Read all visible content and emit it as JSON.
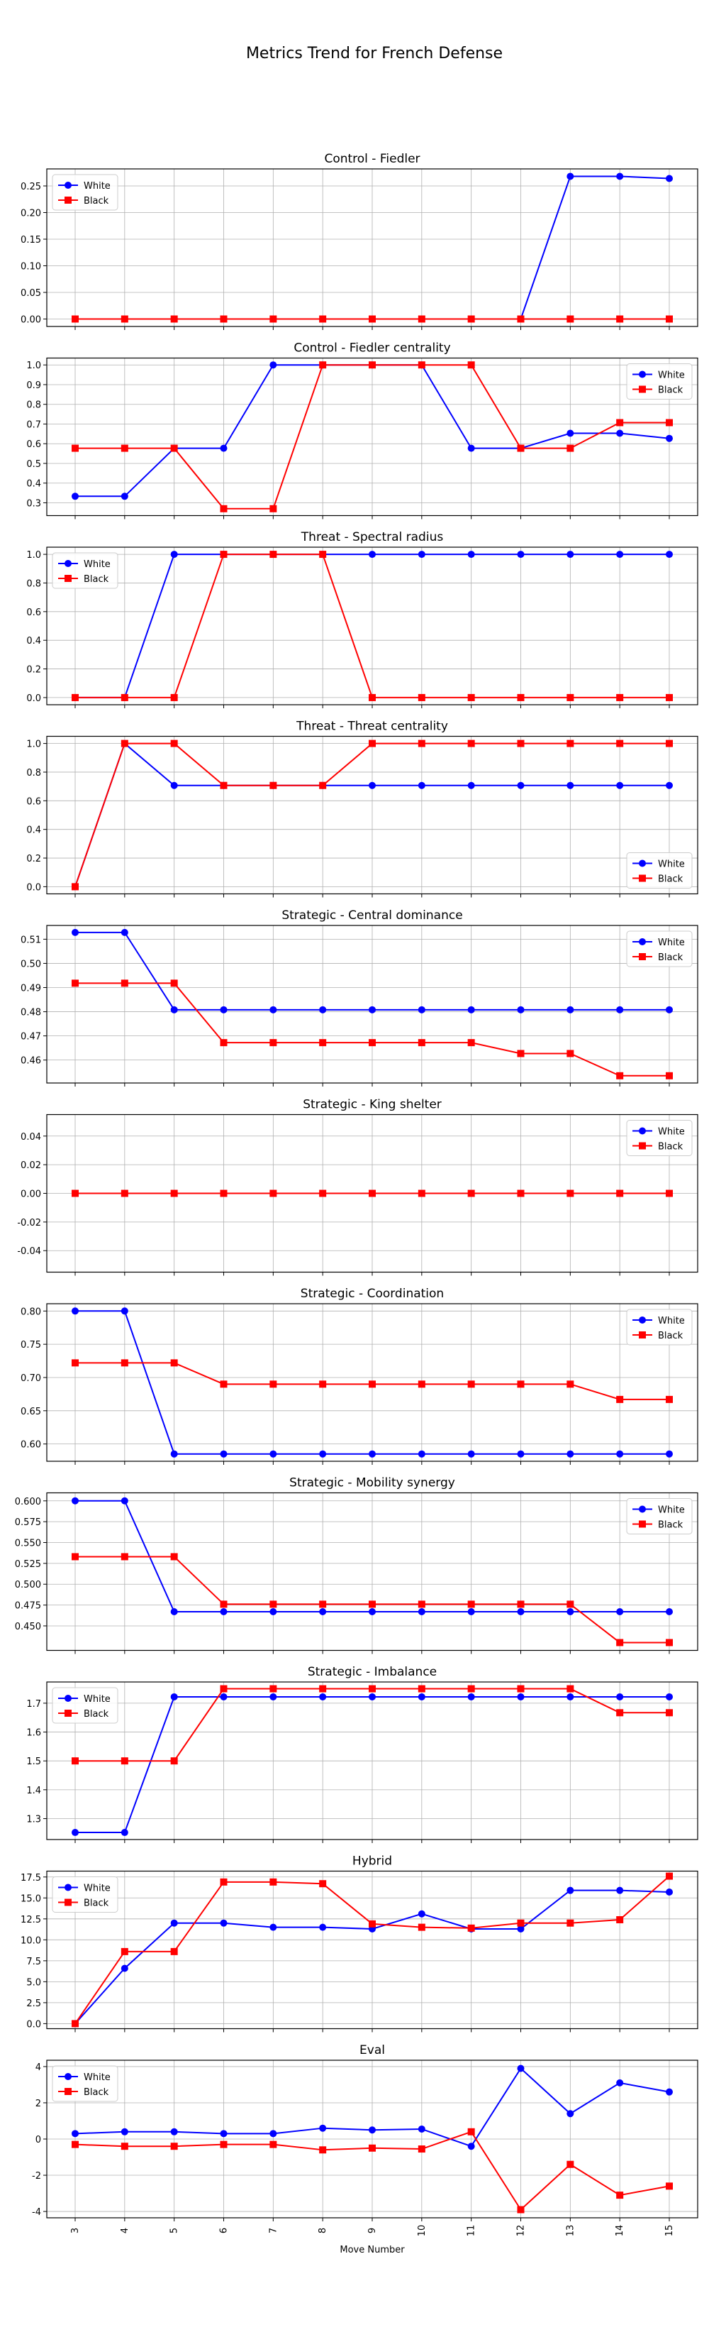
{
  "figure": {
    "title": "Metrics Trend for French Defense",
    "xlabel": "Move Number"
  },
  "colors": {
    "white": "#0000ff",
    "black": "#ff0000",
    "grid": "#b0b0b0"
  },
  "chart_data": [
    {
      "type": "line",
      "title": "Control - Fiedler",
      "x": [
        3,
        4,
        5,
        6,
        7,
        8,
        9,
        10,
        11,
        12,
        13,
        14,
        15
      ],
      "yticks": [
        0.0,
        0.05,
        0.1,
        0.15,
        0.2,
        0.25
      ],
      "tick_decimals": 2,
      "ylim": [
        -0.014,
        0.282
      ],
      "legend": "upper-left",
      "series": [
        {
          "name": "White",
          "marker": "circle",
          "values": [
            0,
            0,
            0,
            0,
            0,
            0,
            0,
            0,
            0,
            0,
            0.268,
            0.268,
            0.264
          ]
        },
        {
          "name": "Black",
          "marker": "square",
          "values": [
            0,
            0,
            0,
            0,
            0,
            0,
            0,
            0,
            0,
            0,
            0,
            0,
            0
          ]
        }
      ]
    },
    {
      "type": "line",
      "title": "Control - Fiedler centrality",
      "x": [
        3,
        4,
        5,
        6,
        7,
        8,
        9,
        10,
        11,
        12,
        13,
        14,
        15
      ],
      "yticks": [
        0.3,
        0.4,
        0.5,
        0.6,
        0.7,
        0.8,
        0.9,
        1.0
      ],
      "tick_decimals": 1,
      "ylim": [
        0.235,
        1.035
      ],
      "legend": "upper-right",
      "series": [
        {
          "name": "White",
          "marker": "circle",
          "values": [
            0.333,
            0.333,
            0.577,
            0.577,
            1.0,
            1.0,
            1.0,
            1.0,
            0.577,
            0.577,
            0.653,
            0.653,
            0.627
          ]
        },
        {
          "name": "Black",
          "marker": "square",
          "values": [
            0.577,
            0.577,
            0.577,
            0.27,
            0.27,
            1.0,
            1.0,
            1.0,
            1.0,
            0.577,
            0.577,
            0.707,
            0.707
          ]
        }
      ]
    },
    {
      "type": "line",
      "title": "Threat - Spectral radius",
      "x": [
        3,
        4,
        5,
        6,
        7,
        8,
        9,
        10,
        11,
        12,
        13,
        14,
        15
      ],
      "yticks": [
        0.0,
        0.2,
        0.4,
        0.6,
        0.8,
        1.0
      ],
      "tick_decimals": 1,
      "ylim": [
        -0.05,
        1.05
      ],
      "legend": "upper-left",
      "series": [
        {
          "name": "White",
          "marker": "circle",
          "values": [
            0,
            0,
            1,
            1,
            1,
            1,
            1,
            1,
            1,
            1,
            1,
            1,
            1
          ]
        },
        {
          "name": "Black",
          "marker": "square",
          "values": [
            0,
            0,
            0,
            1,
            1,
            1,
            0,
            0,
            0,
            0,
            0,
            0,
            0
          ]
        }
      ]
    },
    {
      "type": "line",
      "title": "Threat - Threat centrality",
      "x": [
        3,
        4,
        5,
        6,
        7,
        8,
        9,
        10,
        11,
        12,
        13,
        14,
        15
      ],
      "yticks": [
        0.0,
        0.2,
        0.4,
        0.6,
        0.8,
        1.0
      ],
      "tick_decimals": 1,
      "ylim": [
        -0.05,
        1.05
      ],
      "legend": "lower-right",
      "series": [
        {
          "name": "White",
          "marker": "circle",
          "values": [
            0,
            1.0,
            0.707,
            0.707,
            0.707,
            0.707,
            0.707,
            0.707,
            0.707,
            0.707,
            0.707,
            0.707,
            0.707
          ]
        },
        {
          "name": "Black",
          "marker": "square",
          "values": [
            0,
            1.0,
            1.0,
            0.707,
            0.707,
            0.707,
            1.0,
            1.0,
            1.0,
            1.0,
            1.0,
            1.0,
            1.0
          ]
        }
      ]
    },
    {
      "type": "line",
      "title": "Strategic - Central dominance",
      "x": [
        3,
        4,
        5,
        6,
        7,
        8,
        9,
        10,
        11,
        12,
        13,
        14,
        15
      ],
      "yticks": [
        0.46,
        0.47,
        0.48,
        0.49,
        0.5,
        0.51
      ],
      "tick_decimals": 2,
      "ylim": [
        0.4505,
        0.5157
      ],
      "legend": "upper-right",
      "series": [
        {
          "name": "White",
          "marker": "circle",
          "values": [
            0.5128,
            0.5128,
            0.4808,
            0.4808,
            0.4808,
            0.4808,
            0.4808,
            0.4808,
            0.4808,
            0.4808,
            0.4808,
            0.4808,
            0.4808
          ]
        },
        {
          "name": "Black",
          "marker": "square",
          "values": [
            0.4918,
            0.4918,
            0.4918,
            0.4672,
            0.4672,
            0.4672,
            0.4672,
            0.4672,
            0.4672,
            0.4627,
            0.4627,
            0.4535,
            0.4535
          ]
        }
      ]
    },
    {
      "type": "line",
      "title": "Strategic - King shelter",
      "x": [
        3,
        4,
        5,
        6,
        7,
        8,
        9,
        10,
        11,
        12,
        13,
        14,
        15
      ],
      "yticks": [
        -0.04,
        -0.02,
        0.0,
        0.02,
        0.04
      ],
      "tick_decimals": 2,
      "ylim": [
        -0.055,
        0.055
      ],
      "legend": "upper-right",
      "series": [
        {
          "name": "White",
          "marker": "circle",
          "values": [
            0,
            0,
            0,
            0,
            0,
            0,
            0,
            0,
            0,
            0,
            0,
            0,
            0
          ]
        },
        {
          "name": "Black",
          "marker": "square",
          "values": [
            0,
            0,
            0,
            0,
            0,
            0,
            0,
            0,
            0,
            0,
            0,
            0,
            0
          ]
        }
      ]
    },
    {
      "type": "line",
      "title": "Strategic - Coordination",
      "x": [
        3,
        4,
        5,
        6,
        7,
        8,
        9,
        10,
        11,
        12,
        13,
        14,
        15
      ],
      "yticks": [
        0.6,
        0.65,
        0.7,
        0.75,
        0.8
      ],
      "tick_decimals": 2,
      "ylim": [
        0.574,
        0.811
      ],
      "legend": "upper-right",
      "series": [
        {
          "name": "White",
          "marker": "circle",
          "values": [
            0.8,
            0.8,
            0.585,
            0.585,
            0.585,
            0.585,
            0.585,
            0.585,
            0.585,
            0.585,
            0.585,
            0.585,
            0.585
          ]
        },
        {
          "name": "Black",
          "marker": "square",
          "values": [
            0.722,
            0.722,
            0.722,
            0.69,
            0.69,
            0.69,
            0.69,
            0.69,
            0.69,
            0.69,
            0.69,
            0.667,
            0.667
          ]
        }
      ]
    },
    {
      "type": "line",
      "title": "Strategic - Mobility synergy",
      "x": [
        3,
        4,
        5,
        6,
        7,
        8,
        9,
        10,
        11,
        12,
        13,
        14,
        15
      ],
      "yticks": [
        0.45,
        0.475,
        0.5,
        0.525,
        0.55,
        0.575,
        0.6
      ],
      "tick_decimals": 3,
      "ylim": [
        0.4206,
        0.6096
      ],
      "legend": "upper-right",
      "series": [
        {
          "name": "White",
          "marker": "circle",
          "values": [
            0.6,
            0.6,
            0.467,
            0.467,
            0.467,
            0.467,
            0.467,
            0.467,
            0.467,
            0.467,
            0.467,
            0.467,
            0.467
          ]
        },
        {
          "name": "Black",
          "marker": "square",
          "values": [
            0.533,
            0.533,
            0.533,
            0.476,
            0.476,
            0.476,
            0.476,
            0.476,
            0.476,
            0.476,
            0.476,
            0.43,
            0.43
          ]
        }
      ]
    },
    {
      "type": "line",
      "title": "Strategic - Imbalance",
      "x": [
        3,
        4,
        5,
        6,
        7,
        8,
        9,
        10,
        11,
        12,
        13,
        14,
        15
      ],
      "yticks": [
        1.3,
        1.4,
        1.5,
        1.6,
        1.7
      ],
      "tick_decimals": 1,
      "ylim": [
        1.2275,
        1.7735
      ],
      "legend": "upper-left",
      "series": [
        {
          "name": "White",
          "marker": "circle",
          "values": [
            1.252,
            1.252,
            1.722,
            1.722,
            1.722,
            1.722,
            1.722,
            1.722,
            1.722,
            1.722,
            1.722,
            1.722,
            1.722
          ]
        },
        {
          "name": "Black",
          "marker": "square",
          "values": [
            1.5,
            1.5,
            1.5,
            1.75,
            1.75,
            1.75,
            1.75,
            1.75,
            1.75,
            1.75,
            1.75,
            1.667,
            1.667
          ]
        }
      ]
    },
    {
      "type": "line",
      "title": "Hybrid",
      "x": [
        3,
        4,
        5,
        6,
        7,
        8,
        9,
        10,
        11,
        12,
        13,
        14,
        15
      ],
      "yticks": [
        0.0,
        2.5,
        5.0,
        7.5,
        10.0,
        12.5,
        15.0,
        17.5
      ],
      "tick_decimals": 1,
      "ylim": [
        -0.6,
        18.2
      ],
      "legend": "upper-left",
      "series": [
        {
          "name": "White",
          "marker": "circle",
          "values": [
            0,
            6.6,
            12.0,
            12.0,
            11.5,
            11.5,
            11.3,
            13.1,
            11.3,
            11.3,
            15.9,
            15.9,
            15.7
          ]
        },
        {
          "name": "Black",
          "marker": "square",
          "values": [
            0,
            8.6,
            8.6,
            16.9,
            16.9,
            16.7,
            11.9,
            11.5,
            11.4,
            12.0,
            12.0,
            12.4,
            17.6
          ]
        }
      ]
    },
    {
      "type": "line",
      "title": "Eval",
      "x": [
        3,
        4,
        5,
        6,
        7,
        8,
        9,
        10,
        11,
        12,
        13,
        14,
        15
      ],
      "yticks": [
        -4,
        -2,
        0,
        2,
        4
      ],
      "tick_decimals": 0,
      "ylim": [
        -4.35,
        4.35
      ],
      "legend": "upper-left",
      "series": [
        {
          "name": "White",
          "marker": "circle",
          "values": [
            0.3,
            0.4,
            0.4,
            0.3,
            0.3,
            0.6,
            0.5,
            0.55,
            -0.4,
            3.9,
            1.4,
            3.1,
            2.6
          ]
        },
        {
          "name": "Black",
          "marker": "square",
          "values": [
            -0.3,
            -0.4,
            -0.4,
            -0.3,
            -0.3,
            -0.6,
            -0.5,
            -0.55,
            0.4,
            -3.9,
            -1.4,
            -3.1,
            -2.6
          ]
        }
      ]
    }
  ]
}
